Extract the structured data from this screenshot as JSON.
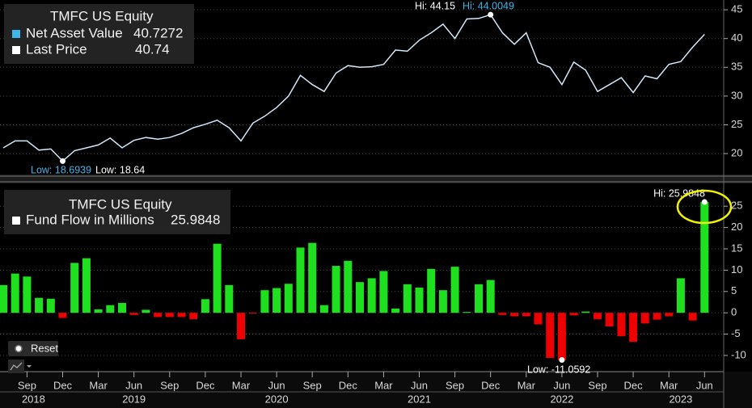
{
  "chart_data": [
    {
      "type": "line",
      "title": "TMFC US Equity",
      "series": [
        {
          "name": "Net Asset Value",
          "value_label": "40.7272",
          "color": "#cfe9fb",
          "values": [
            21,
            22.2,
            22.2,
            20.6,
            20.8,
            18.69,
            20.5,
            21,
            21.5,
            22.7,
            21,
            22.3,
            22.8,
            22.5,
            22.8,
            23.5,
            24.5,
            25.1,
            25.8,
            24.5,
            22.2,
            25.3,
            26.5,
            28,
            30,
            33.6,
            32,
            30.8,
            34,
            35.3,
            35,
            35.1,
            35.5,
            38,
            37.8,
            39.7,
            41,
            42.5,
            40,
            43.4,
            43.5,
            44.15,
            41,
            39,
            41,
            35.8,
            35,
            32,
            35.9,
            34.5,
            30.8,
            32,
            33.2,
            30.6,
            33.5,
            33,
            35.5,
            36,
            38.5,
            40.73
          ]
        }
      ],
      "legend": [
        {
          "name": "Net Asset Value",
          "value_label": "40.7272",
          "color": "#3fb6ea"
        },
        {
          "name": "Last Price",
          "value_label": "40.74",
          "color": "#ffffff"
        }
      ],
      "annotations": [
        "Hi: 44.15",
        "Hi: 44.0049",
        "Low: 18.6939",
        "Low: 18.64"
      ],
      "ylim": [
        16.5,
        46
      ],
      "yticks": [
        20,
        25,
        30,
        35,
        40,
        45
      ],
      "grid": true
    },
    {
      "type": "bar",
      "title": "TMFC US Equity",
      "series_name": "Fund Flow in Millions",
      "value_label": "25.9848",
      "positive_color": "#1fe01f",
      "negative_color": "#ee0000",
      "categories": [
        null,
        null,
        "Sep",
        null,
        null,
        "Dec",
        null,
        null,
        "Mar",
        null,
        null,
        "Jun",
        null,
        null,
        "Sep",
        null,
        null,
        "Dec",
        null,
        null,
        "Mar",
        null,
        null,
        "Jun",
        null,
        null,
        "Sep",
        null,
        null,
        "Dec",
        null,
        null,
        "Mar",
        null,
        null,
        "Jun",
        null,
        null,
        "Sep",
        null,
        null,
        "Dec",
        null,
        null,
        "Mar",
        null,
        null,
        "Jun",
        null,
        null,
        "Sep",
        null,
        null,
        "Dec",
        null,
        null,
        "Mar",
        null,
        null,
        "Jun"
      ],
      "years": [
        null,
        null,
        "2018",
        null,
        null,
        null,
        null,
        null,
        null,
        null,
        null,
        "2019",
        null,
        null,
        null,
        null,
        null,
        null,
        null,
        null,
        null,
        null,
        null,
        "2020",
        null,
        null,
        null,
        null,
        null,
        null,
        null,
        null,
        null,
        null,
        null,
        "2021",
        null,
        null,
        null,
        null,
        null,
        null,
        null,
        null,
        null,
        null,
        null,
        "2022",
        null,
        null,
        null,
        null,
        null,
        null,
        null,
        null,
        null,
        "2023",
        null,
        null
      ],
      "values": [
        6.5,
        9.2,
        8.5,
        3.5,
        3.3,
        -1.2,
        11.7,
        12.8,
        0.8,
        1.8,
        2.3,
        -0.5,
        0.7,
        -1,
        -1,
        -1,
        -1.5,
        3.2,
        16.2,
        6.5,
        -6.2,
        -0.2,
        5.3,
        5.8,
        6.8,
        15.3,
        16.4,
        1.8,
        11,
        12.2,
        7.2,
        8.1,
        9.8,
        1,
        6.7,
        5.9,
        10.3,
        5.3,
        10.8,
        0.2,
        6.7,
        7.7,
        -0.5,
        -0.8,
        -0.8,
        -2.7,
        -10.6,
        -11.06,
        -0.6,
        0.3,
        -1.5,
        -3.2,
        -5.5,
        -6.8,
        -2.5,
        -1.6,
        -0.8,
        8.1,
        -1.8,
        25.98
      ],
      "annotations": [
        "Hi: 25.9848",
        "Low: -11.0592"
      ],
      "ylim": [
        -13.8,
        29.4
      ],
      "yticks": [
        -10,
        -5,
        0,
        5,
        10,
        15,
        20,
        25
      ],
      "grid": true
    }
  ],
  "controls": {
    "reset": "Reset"
  }
}
